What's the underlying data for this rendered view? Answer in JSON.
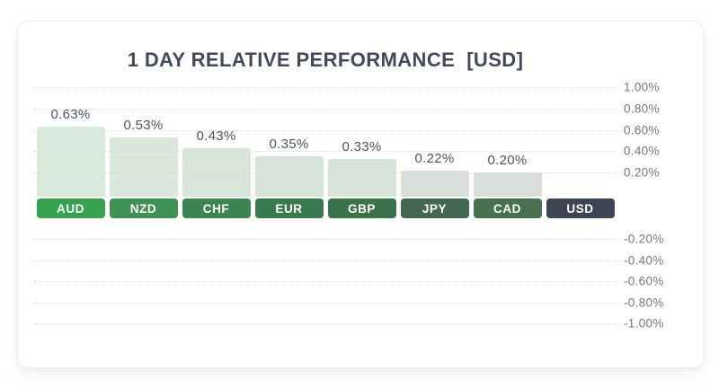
{
  "card": {
    "title_display": "1 DAY RELATIVE PERFORMANCE  [USD]"
  },
  "chart_data": {
    "type": "bar",
    "title": "1 DAY RELATIVE PERFORMANCE [USD]",
    "baseline_currency": "USD",
    "unit": "%",
    "categories": [
      "AUD",
      "NZD",
      "CHF",
      "EUR",
      "GBP",
      "JPY",
      "CAD",
      "USD"
    ],
    "values": [
      0.63,
      0.53,
      0.43,
      0.35,
      0.33,
      0.22,
      0.2,
      0.0
    ],
    "value_labels": [
      "0.63%",
      "0.53%",
      "0.43%",
      "0.35%",
      "0.33%",
      "0.22%",
      "0.20%",
      ""
    ],
    "ylim": [
      -1.0,
      1.0
    ],
    "ytick_step": 0.2,
    "yticks_positive": [
      "1.00%",
      "0.80%",
      "0.60%",
      "0.40%",
      "0.20%"
    ],
    "yticks_negative": [
      "-0.20%",
      "-0.40%",
      "-0.60%",
      "-0.80%",
      "-1.00%"
    ],
    "grid": "horizontal-dotted",
    "axis_side": "right",
    "legend": "none",
    "bar_fills": [
      "#d9e9dc",
      "#d9e8db",
      "#d8e6da",
      "#d7e4d9",
      "#d7e3d8",
      "#dadedb",
      "#dadedb",
      null
    ],
    "chip_colors": [
      "#35a24f",
      "#3f9154",
      "#3c8451",
      "#3a784d",
      "#39724b",
      "#426950",
      "#48724f",
      "#3d4454"
    ]
  },
  "colors": {
    "card_border": "#ebecf0",
    "title_text": "#414a5b",
    "tick_text": "#6f7884",
    "value_text": "#4c5361",
    "gridline": "#d9dbe1",
    "chip_text": "#ffffff"
  }
}
